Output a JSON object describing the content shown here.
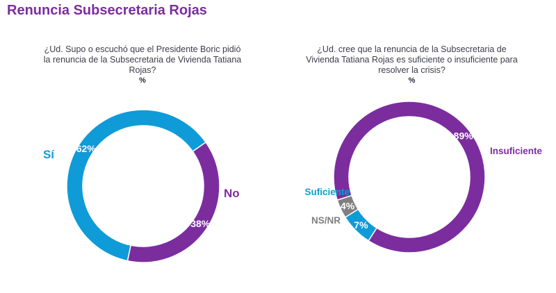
{
  "title": "Renuncia Subsecretaria Rojas",
  "colors": {
    "title": "#7b2d9e",
    "blue": "#0f9bd7",
    "purple": "#7b2d9e",
    "gray": "#7f7f7f"
  },
  "chart_data": [
    {
      "type": "pie",
      "donut": true,
      "question": "¿Ud. Supo o escuchó que el Presidente Boric pidió la renuncia de la Subsecretaria de Vivienda Tatiana Rojas?",
      "unit": "%",
      "categories": [
        "Sí",
        "No"
      ],
      "values": [
        62,
        38
      ],
      "data_labels": [
        "62%",
        "38%"
      ],
      "colors": [
        "#0f9bd7",
        "#7b2d9e"
      ]
    },
    {
      "type": "pie",
      "donut": true,
      "question": "¿Ud. cree que la renuncia de la Subsecretaria de Vivienda Tatiana Rojas es suficiente o insuficiente para resolver la crisis?",
      "unit": "%",
      "categories": [
        "Insuficiente",
        "Suficiente",
        "NS/NR"
      ],
      "values": [
        89,
        7,
        4
      ],
      "data_labels": [
        "89%",
        "7%",
        "4%"
      ],
      "colors": [
        "#7b2d9e",
        "#0f9bd7",
        "#7f7f7f"
      ]
    }
  ]
}
